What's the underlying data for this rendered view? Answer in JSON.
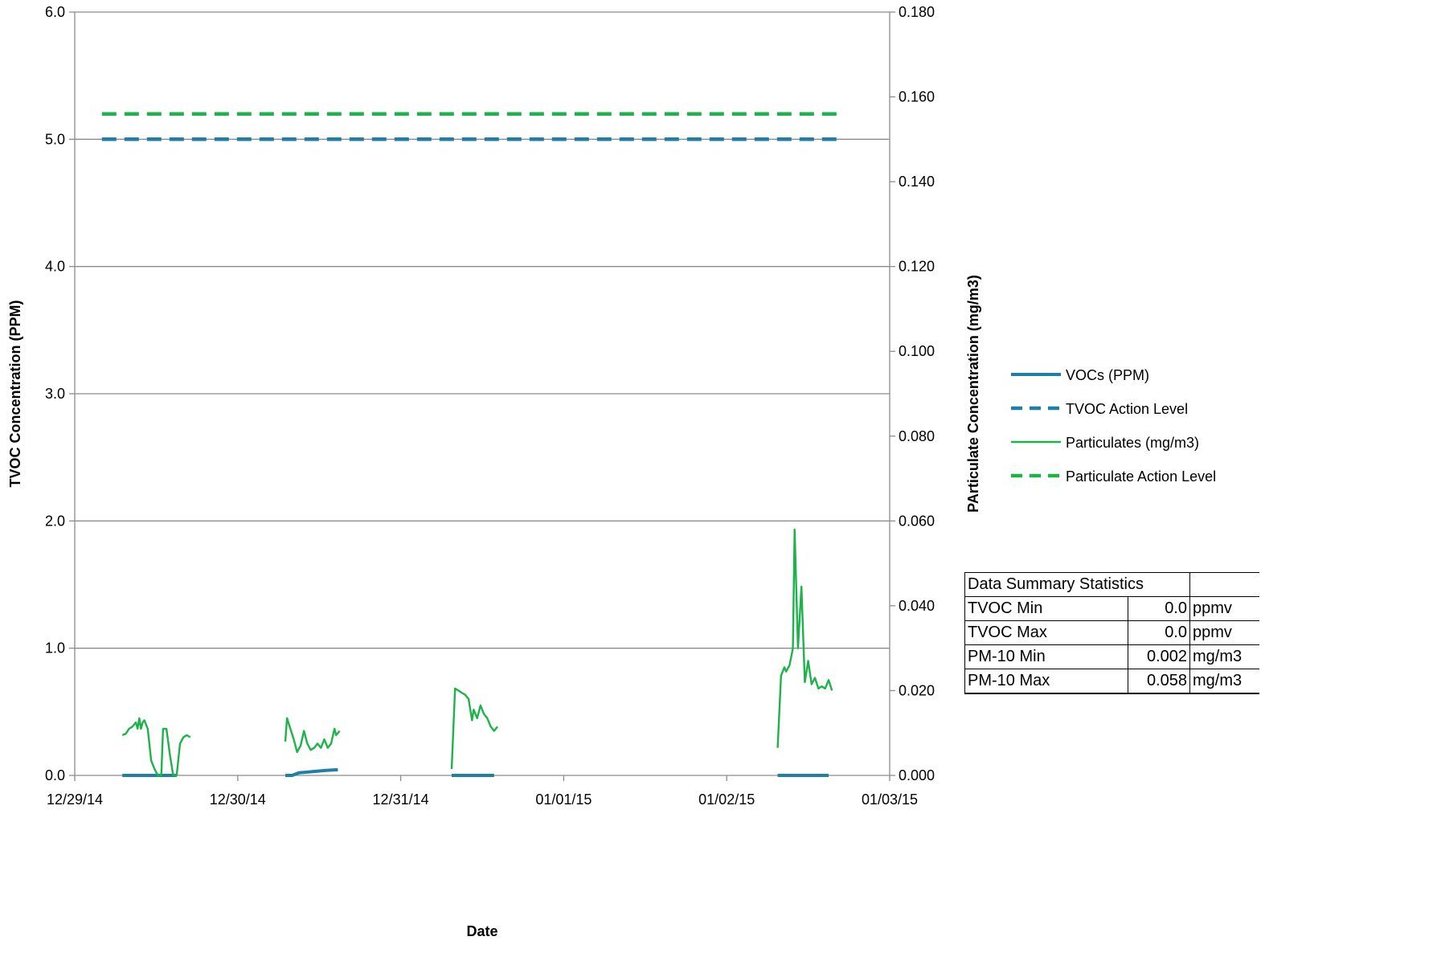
{
  "chart_data": {
    "type": "line",
    "title": "",
    "xlabel": "Date",
    "ylabel_left": "TVOC Concentration (PPM)",
    "ylabel_right": "PArticulate Concentration (mg/m3)",
    "x_ticks": [
      "12/29/14",
      "12/30/14",
      "12/31/14",
      "01/01/15",
      "01/02/15",
      "01/03/15"
    ],
    "xlim": [
      "2014-12-29",
      "2015-01-03"
    ],
    "y_left_ticks": [
      "0.0",
      "1.0",
      "2.0",
      "3.0",
      "4.0",
      "5.0",
      "6.0"
    ],
    "ylim_left": [
      0,
      6
    ],
    "y_right_ticks": [
      "0.000",
      "0.020",
      "0.040",
      "0.060",
      "0.080",
      "0.100",
      "0.120",
      "0.140",
      "0.160",
      "0.180"
    ],
    "ylim_right": [
      0,
      0.18
    ],
    "grid": "horizontal",
    "legend_position": "right",
    "series": [
      {
        "name": "VOCs (PPM)",
        "axis": "left",
        "color": "#1f7fa8",
        "style": "solid-thick",
        "segments": [
          [
            [
              "2014-12-29T07:00",
              0.0
            ],
            [
              "2014-12-29T15:00",
              0.0
            ]
          ],
          [
            [
              "2014-12-30T07:00",
              0.0
            ],
            [
              "2014-12-30T08:00",
              0.0
            ],
            [
              "2014-12-30T09:00",
              0.02
            ],
            [
              "2014-12-30T11:00",
              0.03
            ],
            [
              "2014-12-30T13:00",
              0.04
            ],
            [
              "2014-12-30T14:45",
              0.045
            ]
          ],
          [
            [
              "2014-12-31T07:30",
              0.0
            ],
            [
              "2014-12-31T13:45",
              0.0
            ]
          ],
          [
            [
              "2015-01-02T07:30",
              0.0
            ],
            [
              "2015-01-02T15:00",
              0.0
            ]
          ]
        ]
      },
      {
        "name": "TVOC Action Level",
        "axis": "left",
        "color": "#1f7fa8",
        "style": "dashed",
        "segments": [
          [
            [
              "2014-12-29T04:00",
              5.0
            ],
            [
              "2015-01-02T17:00",
              5.0
            ]
          ]
        ]
      },
      {
        "name": "Particulates (mg/m3)",
        "axis": "right",
        "color": "#1db34a",
        "style": "solid-thin",
        "segments": [
          [
            [
              "2014-12-29T07:00",
              0.0095
            ],
            [
              "2014-12-29T07:30",
              0.0098
            ],
            [
              "2014-12-29T08:00",
              0.011
            ],
            [
              "2014-12-29T08:30",
              0.0115
            ],
            [
              "2014-12-29T09:00",
              0.0125
            ],
            [
              "2014-12-29T09:15",
              0.011
            ],
            [
              "2014-12-29T09:30",
              0.0135
            ],
            [
              "2014-12-29T09:45",
              0.011
            ],
            [
              "2014-12-29T10:00",
              0.0125
            ],
            [
              "2014-12-29T10:15",
              0.013
            ],
            [
              "2014-12-29T10:45",
              0.011
            ],
            [
              "2014-12-29T11:15",
              0.0035
            ],
            [
              "2014-12-29T11:45",
              0.0015
            ],
            [
              "2014-12-29T12:15",
              0.0
            ],
            [
              "2014-12-29T12:45",
              0.0
            ],
            [
              "2014-12-29T13:00",
              0.011
            ],
            [
              "2014-12-29T13:30",
              0.011
            ],
            [
              "2014-12-29T14:00",
              0.005
            ],
            [
              "2014-12-29T14:30",
              0.0
            ],
            [
              "2014-12-29T15:00",
              0.0
            ],
            [
              "2014-12-29T15:30",
              0.0075
            ],
            [
              "2014-12-29T16:00",
              0.009
            ],
            [
              "2014-12-29T16:30",
              0.0095
            ],
            [
              "2014-12-29T17:00",
              0.009
            ]
          ],
          [
            [
              "2014-12-30T07:00",
              0.008
            ],
            [
              "2014-12-30T07:15",
              0.0135
            ],
            [
              "2014-12-30T07:45",
              0.011
            ],
            [
              "2014-12-30T08:15",
              0.0085
            ],
            [
              "2014-12-30T08:45",
              0.0055
            ],
            [
              "2014-12-30T09:15",
              0.007
            ],
            [
              "2014-12-30T09:45",
              0.0105
            ],
            [
              "2014-12-30T10:15",
              0.0075
            ],
            [
              "2014-12-30T10:45",
              0.006
            ],
            [
              "2014-12-30T11:15",
              0.0065
            ],
            [
              "2014-12-30T11:45",
              0.0075
            ],
            [
              "2014-12-30T12:15",
              0.0065
            ],
            [
              "2014-12-30T12:45",
              0.0085
            ],
            [
              "2014-12-30T13:15",
              0.0065
            ],
            [
              "2014-12-30T13:45",
              0.0075
            ],
            [
              "2014-12-30T14:15",
              0.011
            ],
            [
              "2014-12-30T14:30",
              0.0095
            ],
            [
              "2014-12-30T15:00",
              0.0105
            ]
          ],
          [
            [
              "2014-12-31T07:30",
              0.0015
            ],
            [
              "2014-12-31T08:00",
              0.0205
            ],
            [
              "2014-12-31T08:30",
              0.02
            ],
            [
              "2014-12-31T09:00",
              0.0195
            ],
            [
              "2014-12-31T09:30",
              0.019
            ],
            [
              "2014-12-31T10:00",
              0.018
            ],
            [
              "2014-12-31T10:30",
              0.013
            ],
            [
              "2014-12-31T10:45",
              0.0155
            ],
            [
              "2014-12-31T11:15",
              0.0135
            ],
            [
              "2014-12-31T11:45",
              0.0165
            ],
            [
              "2014-12-31T12:15",
              0.0145
            ],
            [
              "2014-12-31T12:45",
              0.0135
            ],
            [
              "2014-12-31T13:15",
              0.0115
            ],
            [
              "2014-12-31T13:45",
              0.0105
            ],
            [
              "2014-12-31T14:15",
              0.0115
            ]
          ],
          [
            [
              "2015-01-02T07:30",
              0.0065
            ],
            [
              "2015-01-02T08:00",
              0.0235
            ],
            [
              "2015-01-02T08:30",
              0.0255
            ],
            [
              "2015-01-02T08:45",
              0.0245
            ],
            [
              "2015-01-02T09:15",
              0.026
            ],
            [
              "2015-01-02T09:45",
              0.03
            ],
            [
              "2015-01-02T10:00",
              0.058
            ],
            [
              "2015-01-02T10:30",
              0.03
            ],
            [
              "2015-01-02T11:00",
              0.0445
            ],
            [
              "2015-01-02T11:30",
              0.022
            ],
            [
              "2015-01-02T12:00",
              0.027
            ],
            [
              "2015-01-02T12:30",
              0.0215
            ],
            [
              "2015-01-02T13:00",
              0.023
            ],
            [
              "2015-01-02T13:30",
              0.0205
            ],
            [
              "2015-01-02T14:00",
              0.021
            ],
            [
              "2015-01-02T14:30",
              0.0205
            ],
            [
              "2015-01-02T15:00",
              0.0225
            ],
            [
              "2015-01-02T15:30",
              0.02
            ]
          ]
        ]
      },
      {
        "name": "Particulate Action Level",
        "axis": "right",
        "color": "#1db34a",
        "style": "dashed",
        "segments": [
          [
            [
              "2014-12-29T04:00",
              0.156
            ],
            [
              "2015-01-02T17:00",
              0.156
            ]
          ]
        ]
      }
    ]
  },
  "summary_table": {
    "header": "Data Summary Statistics",
    "rows": [
      {
        "label": "TVOC Min",
        "value": "0.0",
        "unit": "ppmv"
      },
      {
        "label": "TVOC Max",
        "value": "0.0",
        "unit": "ppmv"
      },
      {
        "label": "PM-10 Min",
        "value": "0.002",
        "unit": "mg/m3"
      },
      {
        "label": "PM-10 Max",
        "value": "0.058",
        "unit": "mg/m3"
      }
    ]
  }
}
